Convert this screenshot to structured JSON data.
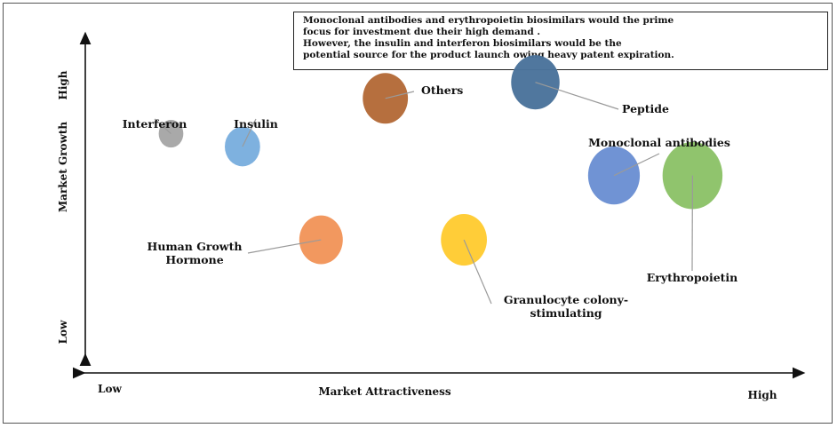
{
  "note": {
    "lines": [
      "Monoclonal antibodies and erythropoietin biosimilars would the prime",
      "focus for investment due their high demand .",
      "However, the insulin and interferon biosimilars would be the",
      "potential source for the product launch owing heavy patent expiration."
    ]
  },
  "axes": {
    "x_title": "Market Attractiveness",
    "x_low": "Low",
    "x_high": "High",
    "y_title": "Market Growth",
    "y_low": "Low",
    "y_high": "High"
  },
  "chart_data": {
    "type": "bubble",
    "xlabel": "Market Attractiveness",
    "ylabel": "Market Growth",
    "x_ticks": [
      "Low",
      "High"
    ],
    "y_ticks": [
      "Low",
      "High"
    ],
    "points": [
      {
        "name": "Interferon",
        "x": 0.12,
        "y": 0.7,
        "size": 0.3,
        "color": "#a6a6a6"
      },
      {
        "name": "Insulin",
        "x": 0.22,
        "y": 0.66,
        "size": 0.43,
        "color": "#7aaede"
      },
      {
        "name": "Others",
        "x": 0.42,
        "y": 0.81,
        "size": 0.55,
        "color": "#b46a38"
      },
      {
        "name": "Peptide",
        "x": 0.63,
        "y": 0.86,
        "size": 0.59,
        "color": "#4a739b"
      },
      {
        "name": "Monoclonal antibodies",
        "x": 0.74,
        "y": 0.57,
        "size": 0.63,
        "color": "#6b8fd3"
      },
      {
        "name": "Erythropoietin",
        "x": 0.85,
        "y": 0.57,
        "size": 0.73,
        "color": "#88bf62"
      },
      {
        "name": "Human Growth Hormone",
        "x": 0.33,
        "y": 0.37,
        "size": 0.53,
        "color": "#f2955a"
      },
      {
        "name": "Granulocyte colony-stimulating",
        "x": 0.53,
        "y": 0.37,
        "size": 0.56,
        "color": "#ffcb32"
      }
    ]
  }
}
